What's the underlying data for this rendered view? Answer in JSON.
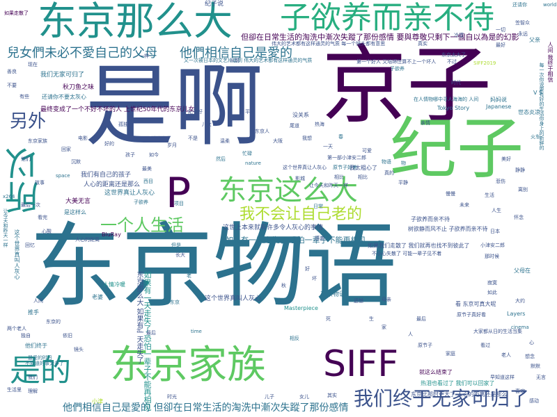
{
  "palette": {
    "dark_purple": "#440154",
    "indigo": "#3b528b",
    "teal": "#2c728e",
    "teal_green": "#21918c",
    "green": "#28ae80",
    "light_green": "#5ec962",
    "lime": "#addc30",
    "yellow": "#e5e419"
  },
  "words": {
    "w01": "东京物语",
    "w02": "是啊",
    "w03": "京子",
    "w04": "纪子",
    "w05": "东京那么大",
    "w06": "子欲养而亲不待",
    "w07": "兒女們未必不愛自己的父母",
    "w08": "他們相信自己是愛的",
    "w09": "所以",
    "w10": "P",
    "w11": "东京这么大",
    "w12": "我不会让自己老的",
    "w13": "一个人生活",
    "w14": "是的",
    "w15": "东京家族",
    "w16": "SIFF",
    "w17": "我们终于无家可归了",
    "w18": "另外",
    "w19": "他們相信自己是愛的 但卻在日常生活的淘洗中漸次失蹤了那份感情",
    "w20": "但卻在日常生活的淘洗中漸次失蹤了那份感情 要與尊敬只剩下一個自以為是的幻影",
    "w21": "伟大的艺术都有这样通灵的气质 每一个镜头都有意思",
    "w22": "又一次被日本的文艺片震到 伟大的艺术都有这样通灵的气质",
    "w23": "最终变成了一个不好不坏的人 上世纪50年代的东京儿女",
    "w24": "如果有一天走失了 恐怕一辈子不能再相见",
    "w25": "这世上本来就有许多令人灰心的事情",
    "w26": "如果有一天走失了 恐怕一辈子不能再相见",
    "w27": "这个世界真叫人灰心",
    "w28": "东京物语",
    "w29": "纪子说",
    "w30": "如果走散了",
    "w31": "秋刀鱼之味",
    "w32": "还请你不要太灰心",
    "w33": "我们无家可归了",
    "w34": "这世界真让人灰心",
    "w35": "人心的距离还是那么",
    "w36": "我们有自己的孩子",
    "w37": "大美无言",
    "w38": "是这样么",
    "w39": "BluRay",
    "w40": "人情冷暖",
    "w41": "Masterpiece",
    "w42": "Tokyo Story",
    "w43": "Japanese",
    "w44": "世态炎凉",
    "w45": "V S",
    "w46": "妈妈说",
    "w47": "space",
    "w48": "nature",
    "w49": "time",
    "w50": "cinema",
    "w51": "Layers",
    "w52": "world",
    "w53": "x264",
    "w54": "父母在",
    "w55": "看 东京可真大呢",
    "w56": "热泪也看过了 我们可以回家了",
    "w57": "就这么结束了",
    "w58": "最后",
    "w59": "相比",
    "w60": "原节子真好看",
    "w61": "小津",
    "w62": "老婆",
    "w63": "原节子好美",
    "w64": "火车",
    "w65": "第一部小津安二郎",
    "w66": "影城",
    "w67": "不知道的事太多了",
    "w68": "最爱的时日",
    "w69": "子欲养而亲不待",
    "w70": "树欲静而风不止 子欲养而亲不待",
    "w71": "大家都从日的生活当集",
    "w72": "早知道这样",
    "w73": "东京比那时更大了 人心的距离还是那么",
    "w74": "在人情物哪中寻人海海的 人间",
    "w75": "生活",
    "w76": "不过",
    "w77": "我想",
    "w78": "没关系",
    "w79": "亲情",
    "w80": "推手",
    "w81": "父亲",
    "w82": "东京太大了",
    "w83": "如果我们走散了 我们就再也找不到彼此了",
    "w84": "不小心失散了 可能一辈子见不着",
    "w85": "东京那么大 如果有一天走失了",
    "w86": "第一个好人 又培缔住算不上一个坏人",
    "w87": "人间 我终于相信",
    "w88": "每一次你说要有好的生活你身上的新鲜的",
    "w89": "让今天和昨天一样",
    "w90": "这个世界真叫人灰心",
    "w91": "还请你",
    "w92": "子欲养",
    "w93": "物语",
    "w94": "相反",
    "w95": "忙碌",
    "w96": "然后",
    "w97": "我太粗心了",
    "w98": "相比",
    "w99": "项目",
    "w100": "西目",
    "w101": "子欲养",
    "w102": "这个世界真让人灰心",
    "w103": "让今天和昨天一样",
    "w104": "他们终于",
    "w105": "人心的距离",
    "w106": "最后",
    "w107": "SIFF2019",
    "w108": "日常",
    "w109": "老",
    "w110": "但是",
    "w111": "东京",
    "w112": "物",
    "w113": "春",
    "w114": "时代",
    "w115": "平凡",
    "w116": "秋",
    "w117": "母亲",
    "w118": "人",
    "w119": "光",
    "w120": "家",
    "w121": "感谢",
    "w122": "遗憾",
    "w123": "生",
    "w124": "死",
    "w125": "好",
    "w126": "坏",
    "w127": "长大",
    "w128": "孩子",
    "w129": "好的",
    "w130": "电影",
    "w131": "回家",
    "w132": "沉默",
    "w133": "孤独",
    "w134": "纪子好",
    "w135": "儿女",
    "w136": "不是",
    "w137": "最美",
    "w138": "岁月",
    "w139": "如今",
    "w140": "温柔",
    "w141": "东京人",
    "w142": "大阪",
    "w143": "尾道",
    "w144": "热海",
    "w145": "一天",
    "w146": "可爱",
    "w147": "真的",
    "w148": "平静",
    "w149": "慢慢",
    "w150": "未来",
    "w151": "人生",
    "w152": "怀念",
    "w153": "日本",
    "w154": "小津安二郎",
    "w155": "那时候",
    "w156": "寂寞",
    "w157": "如此",
    "w158": "大约",
    "w159": "心",
    "w160": "想念",
    "w161": "默默",
    "w162": "无言",
    "w163": "我们",
    "w164": "生活里",
    "w165": "理解",
    "w166": "时光",
    "w167": "儿子",
    "w168": "女儿",
    "w169": "其实",
    "w170": "原节子",
    "w171": "家庭",
    "w172": "看过",
    "w173": "老人",
    "w174": "喜欢",
    "w175": "感动",
    "w176": "美好",
    "w177": "静静",
    "w178": "悲伤",
    "w179": "离别",
    "w180": "笠智众",
    "w181": "一切",
    "w182": "永远",
    "w183": "最好",
    "w184": "冷漠",
    "w185": "真实",
    "w186": "从前",
    "w187": "一样",
    "w188": "现在",
    "w189": "善良",
    "w190": "不要",
    "w191": "有些",
    "w192": "东京家族",
    "w193": "他们",
    "w194": "故事",
    "w195": "最后一次",
    "w196": "看完",
    "w197": "心酸",
    "w198": "回忆",
    "w199": "人间",
    "w200": "东京的",
    "w201": "两个老人",
    "w202": "独自",
    "w203": "依旧",
    "w204": "镜头"
  }
}
